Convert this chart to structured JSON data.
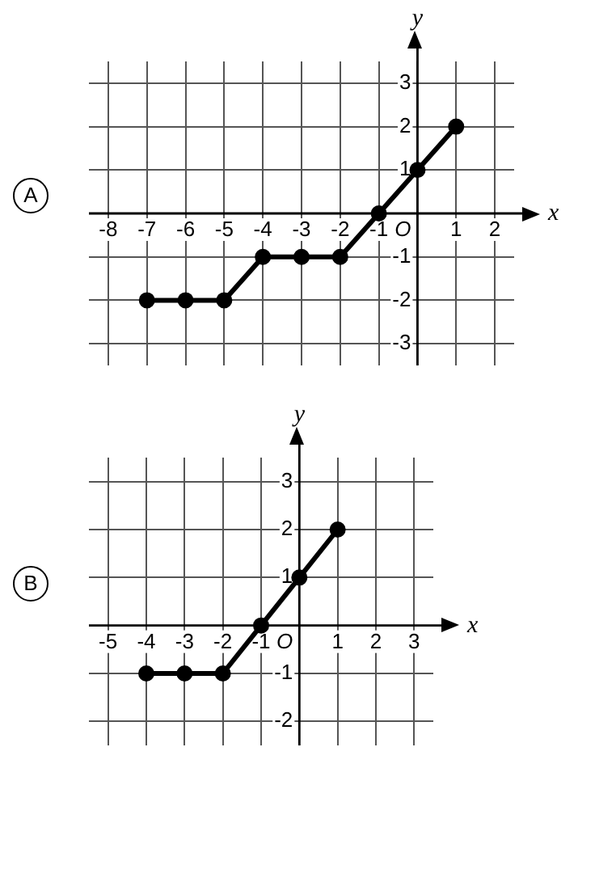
{
  "chart_data": [
    {
      "type": "line",
      "title": "A",
      "xlabel": "x",
      "ylabel": "y",
      "x": [
        -7,
        -6,
        -5,
        -4,
        -3,
        -2,
        -1,
        0,
        1
      ],
      "values": [
        -2,
        -2,
        -2,
        -1,
        -1,
        -1,
        0,
        1,
        2
      ],
      "color": "#000000",
      "xlim": [
        -8.5,
        2.5
      ],
      "ylim": [
        -3.5,
        3.5
      ],
      "xticks": [
        -8,
        -7,
        -6,
        -5,
        -4,
        -3,
        -2,
        -1,
        {
          "value": 0,
          "label": null
        },
        1,
        2
      ],
      "annotations": [
        "O"
      ],
      "yticks": [
        -3,
        -2,
        -1,
        {
          "value": 0,
          "label": null
        },
        1,
        2,
        3
      ],
      "grid": true,
      "marker": "circle",
      "line_style": "solid"
    },
    {
      "type": "line",
      "title": "B",
      "xlabel": "x",
      "ylabel": "y",
      "x": [
        -4,
        -3,
        -2,
        -1,
        0,
        1
      ],
      "values": [
        -1,
        -1,
        -1,
        0,
        1,
        2
      ],
      "color": "#000000",
      "xlim": [
        -5.5,
        3.5
      ],
      "ylim": [
        -2.5,
        3.5
      ],
      "xticks": [
        -5,
        -4,
        -3,
        -2,
        -1,
        {
          "value": 0,
          "label": null
        },
        1,
        2,
        3
      ],
      "annotations": [
        "O"
      ],
      "yticks": [
        -2,
        -1,
        {
          "value": 0,
          "label": null
        },
        1,
        2,
        3
      ],
      "grid": true,
      "marker": "circle",
      "line_style": "solid"
    }
  ]
}
